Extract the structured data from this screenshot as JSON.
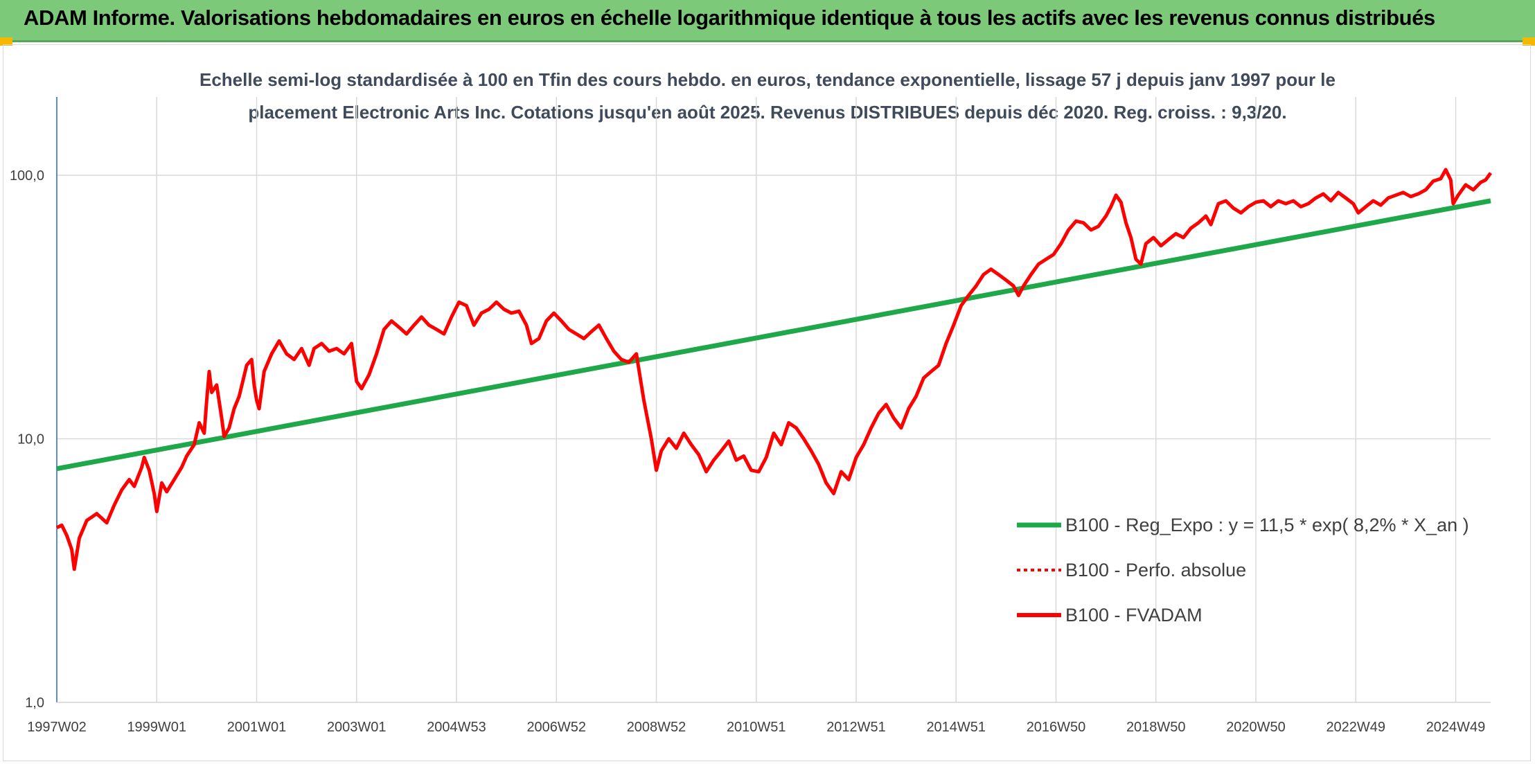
{
  "banner": {
    "title": "ADAM Informe. Valorisations hebdomadaires en euros en échelle logarithmique identique à tous les actifs avec les revenus connus distribués"
  },
  "chart_data": {
    "type": "line",
    "title_lines": [
      "Echelle semi-log standardisée à 100 en Tfin des cours hebdo. en euros, tendance exponentielle, lissage 57 j depuis janv 1997 pour le",
      "placement Electronic Arts Inc. Cotations jusqu'en août 2025. Revenus DISTRIBUES depuis déc 2020. Reg. croiss. : 9,3/20."
    ],
    "y_scale": "log",
    "ylim": [
      1,
      200
    ],
    "y_ticks": [
      1,
      10,
      100
    ],
    "y_tick_labels": [
      "1,0",
      "10,0",
      "100,0"
    ],
    "xlim": [
      1997.0,
      2025.7
    ],
    "x_ticks": [
      1997.0,
      1999.0,
      2001.0,
      2003.0,
      2005.0,
      2007.0,
      2009.0,
      2011.0,
      2013.0,
      2015.0,
      2017.0,
      2019.0,
      2021.0,
      2023.0,
      2025.0
    ],
    "x_tick_labels": [
      "1997W02",
      "1999W01",
      "2001W01",
      "2003W01",
      "2004W53",
      "2006W52",
      "2008W52",
      "2010W51",
      "2012W51",
      "2014W51",
      "2016W50",
      "2018W50",
      "2020W50",
      "2022W49",
      "2024W49"
    ],
    "gridlines": true,
    "legend_position": "right",
    "colors": {
      "trend": "#1fa84a",
      "series": "#ff0000"
    },
    "series": [
      {
        "name": "B100 - Reg_Expo : y = 11,5 * exp( 8,2% *  X_an )",
        "style": "solid-green",
        "exponential": {
          "start": [
            1997.0,
            7.7
          ],
          "end": [
            2025.7,
            80.0
          ]
        }
      },
      {
        "name": "B100 - Perfo. absolue",
        "style": "dotted-red",
        "points": []
      },
      {
        "name": "B100 - FVADAM",
        "style": "solid-red",
        "points": [
          [
            1997.0,
            4.6
          ],
          [
            1997.1,
            4.7
          ],
          [
            1997.2,
            4.3
          ],
          [
            1997.3,
            3.8
          ],
          [
            1997.35,
            3.2
          ],
          [
            1997.45,
            4.2
          ],
          [
            1997.6,
            4.9
          ],
          [
            1997.8,
            5.2
          ],
          [
            1998.0,
            4.8
          ],
          [
            1998.15,
            5.6
          ],
          [
            1998.3,
            6.4
          ],
          [
            1998.45,
            7.0
          ],
          [
            1998.55,
            6.6
          ],
          [
            1998.7,
            7.8
          ],
          [
            1998.75,
            8.5
          ],
          [
            1998.85,
            7.6
          ],
          [
            1998.95,
            6.2
          ],
          [
            1999.0,
            5.3
          ],
          [
            1999.1,
            6.8
          ],
          [
            1999.2,
            6.3
          ],
          [
            1999.35,
            7.0
          ],
          [
            1999.5,
            7.8
          ],
          [
            1999.6,
            8.6
          ],
          [
            1999.75,
            9.5
          ],
          [
            1999.85,
            11.5
          ],
          [
            1999.95,
            10.5
          ],
          [
            2000.0,
            14.0
          ],
          [
            2000.05,
            18.0
          ],
          [
            2000.1,
            15.0
          ],
          [
            2000.2,
            16.0
          ],
          [
            2000.3,
            12.0
          ],
          [
            2000.35,
            10.2
          ],
          [
            2000.45,
            11.0
          ],
          [
            2000.55,
            13.0
          ],
          [
            2000.65,
            14.5
          ],
          [
            2000.8,
            19.0
          ],
          [
            2000.9,
            20.0
          ],
          [
            2000.95,
            16.0
          ],
          [
            2001.0,
            14.0
          ],
          [
            2001.05,
            13.0
          ],
          [
            2001.15,
            18.0
          ],
          [
            2001.3,
            21.0
          ],
          [
            2001.45,
            23.5
          ],
          [
            2001.6,
            21.0
          ],
          [
            2001.75,
            20.0
          ],
          [
            2001.9,
            22.0
          ],
          [
            2002.05,
            19.0
          ],
          [
            2002.15,
            22.0
          ],
          [
            2002.3,
            23.0
          ],
          [
            2002.45,
            21.5
          ],
          [
            2002.6,
            22.0
          ],
          [
            2002.75,
            21.0
          ],
          [
            2002.9,
            23.0
          ],
          [
            2003.0,
            16.5
          ],
          [
            2003.1,
            15.5
          ],
          [
            2003.25,
            17.5
          ],
          [
            2003.4,
            21.0
          ],
          [
            2003.55,
            26.0
          ],
          [
            2003.7,
            28.0
          ],
          [
            2003.85,
            26.5
          ],
          [
            2004.0,
            25.0
          ],
          [
            2004.15,
            27.0
          ],
          [
            2004.3,
            29.0
          ],
          [
            2004.45,
            27.0
          ],
          [
            2004.6,
            26.0
          ],
          [
            2004.75,
            25.0
          ],
          [
            2004.9,
            29.0
          ],
          [
            2005.05,
            33.0
          ],
          [
            2005.2,
            32.0
          ],
          [
            2005.35,
            27.0
          ],
          [
            2005.5,
            30.0
          ],
          [
            2005.65,
            31.0
          ],
          [
            2005.8,
            33.0
          ],
          [
            2005.95,
            31.0
          ],
          [
            2006.1,
            30.0
          ],
          [
            2006.25,
            30.5
          ],
          [
            2006.4,
            27.0
          ],
          [
            2006.5,
            23.0
          ],
          [
            2006.65,
            24.0
          ],
          [
            2006.8,
            28.0
          ],
          [
            2006.95,
            30.0
          ],
          [
            2007.1,
            28.0
          ],
          [
            2007.25,
            26.0
          ],
          [
            2007.4,
            25.0
          ],
          [
            2007.55,
            24.0
          ],
          [
            2007.7,
            25.5
          ],
          [
            2007.85,
            27.0
          ],
          [
            2008.0,
            24.0
          ],
          [
            2008.15,
            21.5
          ],
          [
            2008.3,
            20.0
          ],
          [
            2008.45,
            19.5
          ],
          [
            2008.6,
            21.0
          ],
          [
            2008.75,
            14.0
          ],
          [
            2008.9,
            10.0
          ],
          [
            2009.0,
            7.6
          ],
          [
            2009.1,
            9.0
          ],
          [
            2009.25,
            10.0
          ],
          [
            2009.4,
            9.2
          ],
          [
            2009.55,
            10.5
          ],
          [
            2009.7,
            9.5
          ],
          [
            2009.85,
            8.7
          ],
          [
            2010.0,
            7.5
          ],
          [
            2010.15,
            8.3
          ],
          [
            2010.3,
            9.0
          ],
          [
            2010.45,
            9.8
          ],
          [
            2010.6,
            8.3
          ],
          [
            2010.75,
            8.6
          ],
          [
            2010.9,
            7.6
          ],
          [
            2011.05,
            7.5
          ],
          [
            2011.2,
            8.5
          ],
          [
            2011.35,
            10.5
          ],
          [
            2011.5,
            9.5
          ],
          [
            2011.65,
            11.5
          ],
          [
            2011.8,
            11.0
          ],
          [
            2011.95,
            10.0
          ],
          [
            2012.1,
            9.0
          ],
          [
            2012.25,
            8.0
          ],
          [
            2012.4,
            6.8
          ],
          [
            2012.55,
            6.2
          ],
          [
            2012.7,
            7.5
          ],
          [
            2012.85,
            7.0
          ],
          [
            2013.0,
            8.5
          ],
          [
            2013.15,
            9.5
          ],
          [
            2013.3,
            11.0
          ],
          [
            2013.45,
            12.5
          ],
          [
            2013.6,
            13.5
          ],
          [
            2013.75,
            12.0
          ],
          [
            2013.9,
            11.0
          ],
          [
            2014.05,
            13.0
          ],
          [
            2014.2,
            14.5
          ],
          [
            2014.35,
            17.0
          ],
          [
            2014.5,
            18.0
          ],
          [
            2014.65,
            19.0
          ],
          [
            2014.8,
            23.0
          ],
          [
            2014.95,
            27.0
          ],
          [
            2015.1,
            32.0
          ],
          [
            2015.25,
            35.0
          ],
          [
            2015.4,
            38.0
          ],
          [
            2015.55,
            42.0
          ],
          [
            2015.7,
            44.0
          ],
          [
            2015.85,
            42.0
          ],
          [
            2016.0,
            40.0
          ],
          [
            2016.15,
            38.0
          ],
          [
            2016.25,
            35.0
          ],
          [
            2016.35,
            38.0
          ],
          [
            2016.5,
            42.0
          ],
          [
            2016.65,
            46.0
          ],
          [
            2016.8,
            48.0
          ],
          [
            2016.95,
            50.0
          ],
          [
            2017.1,
            55.0
          ],
          [
            2017.25,
            62.0
          ],
          [
            2017.4,
            67.0
          ],
          [
            2017.55,
            66.0
          ],
          [
            2017.7,
            62.0
          ],
          [
            2017.85,
            64.0
          ],
          [
            2018.0,
            70.0
          ],
          [
            2018.1,
            76.0
          ],
          [
            2018.2,
            84.0
          ],
          [
            2018.3,
            79.0
          ],
          [
            2018.4,
            66.0
          ],
          [
            2018.5,
            58.0
          ],
          [
            2018.6,
            48.0
          ],
          [
            2018.7,
            46.0
          ],
          [
            2018.8,
            55.0
          ],
          [
            2018.95,
            58.0
          ],
          [
            2019.1,
            54.0
          ],
          [
            2019.25,
            57.0
          ],
          [
            2019.4,
            60.0
          ],
          [
            2019.55,
            58.0
          ],
          [
            2019.7,
            63.0
          ],
          [
            2019.85,
            66.0
          ],
          [
            2020.0,
            70.0
          ],
          [
            2020.1,
            65.0
          ],
          [
            2020.25,
            78.0
          ],
          [
            2020.4,
            80.0
          ],
          [
            2020.55,
            75.0
          ],
          [
            2020.7,
            72.0
          ],
          [
            2020.85,
            76.0
          ],
          [
            2021.0,
            79.0
          ],
          [
            2021.15,
            80.0
          ],
          [
            2021.3,
            76.0
          ],
          [
            2021.45,
            80.0
          ],
          [
            2021.6,
            78.0
          ],
          [
            2021.75,
            80.0
          ],
          [
            2021.9,
            76.0
          ],
          [
            2022.05,
            78.0
          ],
          [
            2022.2,
            82.0
          ],
          [
            2022.35,
            85.0
          ],
          [
            2022.5,
            80.0
          ],
          [
            2022.65,
            86.0
          ],
          [
            2022.8,
            82.0
          ],
          [
            2022.95,
            78.0
          ],
          [
            2023.05,
            72.0
          ],
          [
            2023.2,
            76.0
          ],
          [
            2023.35,
            80.0
          ],
          [
            2023.5,
            77.0
          ],
          [
            2023.65,
            82.0
          ],
          [
            2023.8,
            84.0
          ],
          [
            2023.95,
            86.0
          ],
          [
            2024.1,
            83.0
          ],
          [
            2024.25,
            85.0
          ],
          [
            2024.4,
            88.0
          ],
          [
            2024.55,
            95.0
          ],
          [
            2024.7,
            97.0
          ],
          [
            2024.8,
            105.0
          ],
          [
            2024.9,
            96.0
          ],
          [
            2024.95,
            78.0
          ],
          [
            2025.05,
            84.0
          ],
          [
            2025.2,
            92.0
          ],
          [
            2025.35,
            88.0
          ],
          [
            2025.5,
            94.0
          ],
          [
            2025.6,
            96.0
          ],
          [
            2025.7,
            102.0
          ]
        ]
      }
    ]
  }
}
